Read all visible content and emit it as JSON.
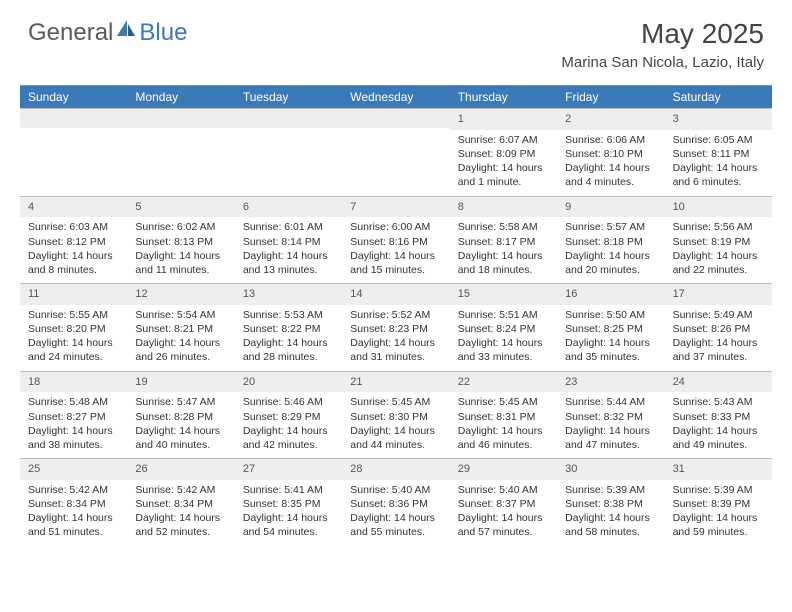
{
  "brand": {
    "part1": "General",
    "part2": "Blue"
  },
  "title": "May 2025",
  "location": "Marina San Nicola, Lazio, Italy",
  "colors": {
    "header_bg": "#3a7ab8",
    "header_text": "#ffffff",
    "daynum_bg": "#eeeeee",
    "border": "#bbbbbb",
    "text": "#333333",
    "brand_gray": "#5a5a5a",
    "brand_blue": "#3a7ab8"
  },
  "weekdays": [
    "Sunday",
    "Monday",
    "Tuesday",
    "Wednesday",
    "Thursday",
    "Friday",
    "Saturday"
  ],
  "weeks": [
    [
      {
        "day": "",
        "sunrise": "",
        "sunset": "",
        "daylight": ""
      },
      {
        "day": "",
        "sunrise": "",
        "sunset": "",
        "daylight": ""
      },
      {
        "day": "",
        "sunrise": "",
        "sunset": "",
        "daylight": ""
      },
      {
        "day": "",
        "sunrise": "",
        "sunset": "",
        "daylight": ""
      },
      {
        "day": "1",
        "sunrise": "Sunrise: 6:07 AM",
        "sunset": "Sunset: 8:09 PM",
        "daylight": "Daylight: 14 hours and 1 minute."
      },
      {
        "day": "2",
        "sunrise": "Sunrise: 6:06 AM",
        "sunset": "Sunset: 8:10 PM",
        "daylight": "Daylight: 14 hours and 4 minutes."
      },
      {
        "day": "3",
        "sunrise": "Sunrise: 6:05 AM",
        "sunset": "Sunset: 8:11 PM",
        "daylight": "Daylight: 14 hours and 6 minutes."
      }
    ],
    [
      {
        "day": "4",
        "sunrise": "Sunrise: 6:03 AM",
        "sunset": "Sunset: 8:12 PM",
        "daylight": "Daylight: 14 hours and 8 minutes."
      },
      {
        "day": "5",
        "sunrise": "Sunrise: 6:02 AM",
        "sunset": "Sunset: 8:13 PM",
        "daylight": "Daylight: 14 hours and 11 minutes."
      },
      {
        "day": "6",
        "sunrise": "Sunrise: 6:01 AM",
        "sunset": "Sunset: 8:14 PM",
        "daylight": "Daylight: 14 hours and 13 minutes."
      },
      {
        "day": "7",
        "sunrise": "Sunrise: 6:00 AM",
        "sunset": "Sunset: 8:16 PM",
        "daylight": "Daylight: 14 hours and 15 minutes."
      },
      {
        "day": "8",
        "sunrise": "Sunrise: 5:58 AM",
        "sunset": "Sunset: 8:17 PM",
        "daylight": "Daylight: 14 hours and 18 minutes."
      },
      {
        "day": "9",
        "sunrise": "Sunrise: 5:57 AM",
        "sunset": "Sunset: 8:18 PM",
        "daylight": "Daylight: 14 hours and 20 minutes."
      },
      {
        "day": "10",
        "sunrise": "Sunrise: 5:56 AM",
        "sunset": "Sunset: 8:19 PM",
        "daylight": "Daylight: 14 hours and 22 minutes."
      }
    ],
    [
      {
        "day": "11",
        "sunrise": "Sunrise: 5:55 AM",
        "sunset": "Sunset: 8:20 PM",
        "daylight": "Daylight: 14 hours and 24 minutes."
      },
      {
        "day": "12",
        "sunrise": "Sunrise: 5:54 AM",
        "sunset": "Sunset: 8:21 PM",
        "daylight": "Daylight: 14 hours and 26 minutes."
      },
      {
        "day": "13",
        "sunrise": "Sunrise: 5:53 AM",
        "sunset": "Sunset: 8:22 PM",
        "daylight": "Daylight: 14 hours and 28 minutes."
      },
      {
        "day": "14",
        "sunrise": "Sunrise: 5:52 AM",
        "sunset": "Sunset: 8:23 PM",
        "daylight": "Daylight: 14 hours and 31 minutes."
      },
      {
        "day": "15",
        "sunrise": "Sunrise: 5:51 AM",
        "sunset": "Sunset: 8:24 PM",
        "daylight": "Daylight: 14 hours and 33 minutes."
      },
      {
        "day": "16",
        "sunrise": "Sunrise: 5:50 AM",
        "sunset": "Sunset: 8:25 PM",
        "daylight": "Daylight: 14 hours and 35 minutes."
      },
      {
        "day": "17",
        "sunrise": "Sunrise: 5:49 AM",
        "sunset": "Sunset: 8:26 PM",
        "daylight": "Daylight: 14 hours and 37 minutes."
      }
    ],
    [
      {
        "day": "18",
        "sunrise": "Sunrise: 5:48 AM",
        "sunset": "Sunset: 8:27 PM",
        "daylight": "Daylight: 14 hours and 38 minutes."
      },
      {
        "day": "19",
        "sunrise": "Sunrise: 5:47 AM",
        "sunset": "Sunset: 8:28 PM",
        "daylight": "Daylight: 14 hours and 40 minutes."
      },
      {
        "day": "20",
        "sunrise": "Sunrise: 5:46 AM",
        "sunset": "Sunset: 8:29 PM",
        "daylight": "Daylight: 14 hours and 42 minutes."
      },
      {
        "day": "21",
        "sunrise": "Sunrise: 5:45 AM",
        "sunset": "Sunset: 8:30 PM",
        "daylight": "Daylight: 14 hours and 44 minutes."
      },
      {
        "day": "22",
        "sunrise": "Sunrise: 5:45 AM",
        "sunset": "Sunset: 8:31 PM",
        "daylight": "Daylight: 14 hours and 46 minutes."
      },
      {
        "day": "23",
        "sunrise": "Sunrise: 5:44 AM",
        "sunset": "Sunset: 8:32 PM",
        "daylight": "Daylight: 14 hours and 47 minutes."
      },
      {
        "day": "24",
        "sunrise": "Sunrise: 5:43 AM",
        "sunset": "Sunset: 8:33 PM",
        "daylight": "Daylight: 14 hours and 49 minutes."
      }
    ],
    [
      {
        "day": "25",
        "sunrise": "Sunrise: 5:42 AM",
        "sunset": "Sunset: 8:34 PM",
        "daylight": "Daylight: 14 hours and 51 minutes."
      },
      {
        "day": "26",
        "sunrise": "Sunrise: 5:42 AM",
        "sunset": "Sunset: 8:34 PM",
        "daylight": "Daylight: 14 hours and 52 minutes."
      },
      {
        "day": "27",
        "sunrise": "Sunrise: 5:41 AM",
        "sunset": "Sunset: 8:35 PM",
        "daylight": "Daylight: 14 hours and 54 minutes."
      },
      {
        "day": "28",
        "sunrise": "Sunrise: 5:40 AM",
        "sunset": "Sunset: 8:36 PM",
        "daylight": "Daylight: 14 hours and 55 minutes."
      },
      {
        "day": "29",
        "sunrise": "Sunrise: 5:40 AM",
        "sunset": "Sunset: 8:37 PM",
        "daylight": "Daylight: 14 hours and 57 minutes."
      },
      {
        "day": "30",
        "sunrise": "Sunrise: 5:39 AM",
        "sunset": "Sunset: 8:38 PM",
        "daylight": "Daylight: 14 hours and 58 minutes."
      },
      {
        "day": "31",
        "sunrise": "Sunrise: 5:39 AM",
        "sunset": "Sunset: 8:39 PM",
        "daylight": "Daylight: 14 hours and 59 minutes."
      }
    ]
  ]
}
